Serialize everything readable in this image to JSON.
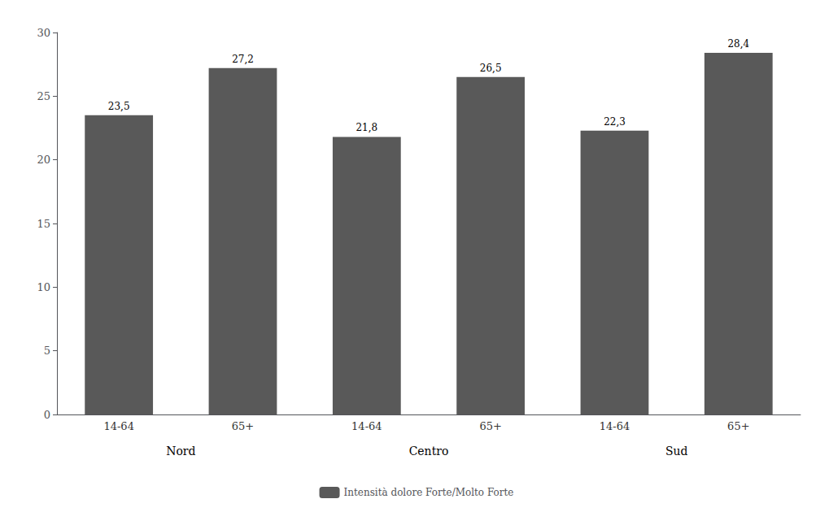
{
  "chart_data": {
    "type": "bar",
    "categories": [
      "14-64",
      "65+",
      "14-64",
      "65+",
      "14-64",
      "65+"
    ],
    "groups": [
      "Nord",
      "Centro",
      "Sud"
    ],
    "series": [
      {
        "name": "Intensità dolore Forte/Molto Forte",
        "color": "#595959",
        "values": [
          23.5,
          27.2,
          21.8,
          26.5,
          22.3,
          28.4
        ],
        "value_labels": [
          "23,5",
          "27,2",
          "21,8",
          "26,5",
          "22,3",
          "28,4"
        ]
      }
    ],
    "ylim": [
      0,
      30
    ],
    "yticks": [
      0,
      5,
      10,
      15,
      20,
      25,
      30
    ],
    "data_labels": true,
    "legend": "bottom",
    "grid": false
  }
}
